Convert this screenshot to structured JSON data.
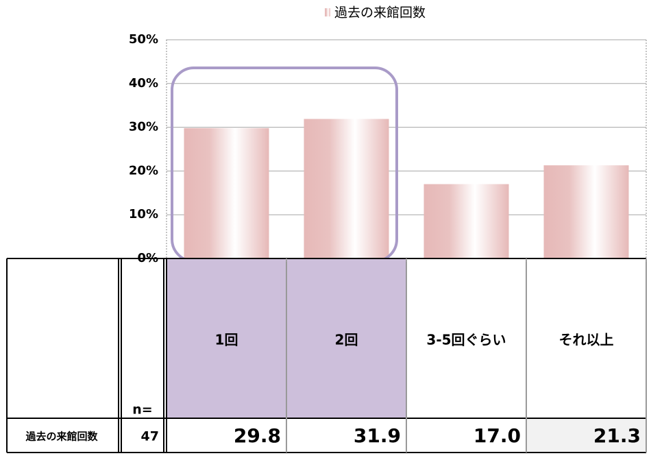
{
  "chart_data": {
    "type": "bar",
    "series": [
      {
        "name": "過去の来館回数",
        "color": "#e6b8b7",
        "values": [
          29.8,
          31.9,
          17.0,
          21.3
        ],
        "value_labels": [
          "29.8",
          "31.9",
          "17.0",
          "21.3"
        ]
      }
    ],
    "categories": [
      "1回",
      "2回",
      "3-5回ぐらい",
      "それ以上"
    ],
    "ylim": [
      0,
      50
    ],
    "yticks": [
      {
        "value": 0,
        "label": "0%"
      },
      {
        "value": 10,
        "label": "10%"
      },
      {
        "value": 20,
        "label": "20%"
      },
      {
        "value": 30,
        "label": "30%"
      },
      {
        "value": 40,
        "label": "40%"
      },
      {
        "value": 50,
        "label": "50%"
      }
    ],
    "grid": true,
    "n_label": "n=",
    "n": 47
  }
}
